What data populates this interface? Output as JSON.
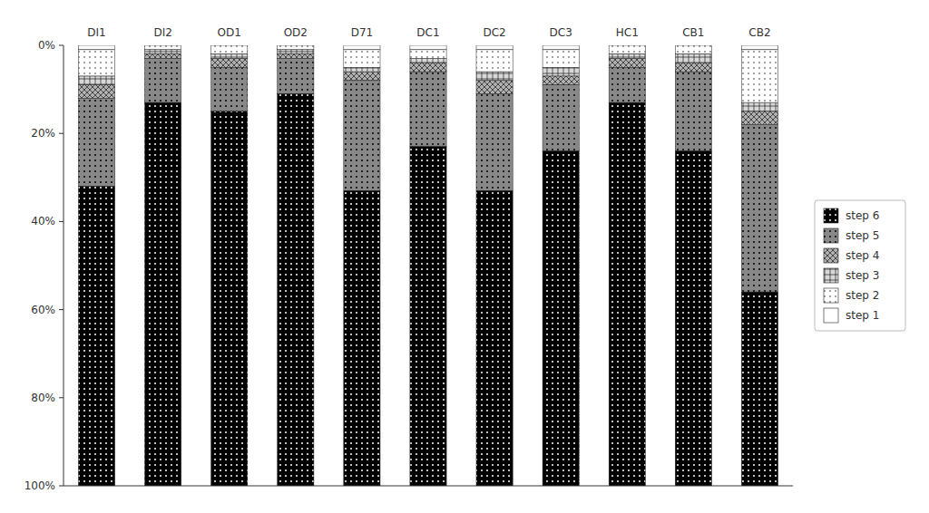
{
  "chart_data": {
    "type": "bar",
    "stacked": true,
    "categories": [
      "DI1",
      "DI2",
      "OD1",
      "OD2",
      "D71",
      "DC1",
      "DC2",
      "DC3",
      "HC1",
      "CB1",
      "CB2"
    ],
    "series": [
      {
        "name": "step 1",
        "color": "#ffffff",
        "values": [
          1,
          0,
          0,
          0,
          1,
          1,
          1,
          1,
          0,
          0,
          1
        ]
      },
      {
        "name": "step 2",
        "color": "#ffffff",
        "values": [
          6,
          1,
          2,
          1,
          4,
          2,
          5,
          4,
          2,
          2,
          12
        ]
      },
      {
        "name": "step 3",
        "color": "#d8d8d8",
        "values": [
          2,
          1,
          1,
          1,
          1,
          1,
          2,
          2,
          1,
          2,
          2
        ]
      },
      {
        "name": "step 4",
        "color": "#b0b0b0",
        "values": [
          3,
          1,
          2,
          1,
          2,
          2,
          3,
          2,
          2,
          2,
          3
        ]
      },
      {
        "name": "step 5",
        "color": "#888888",
        "values": [
          20,
          10,
          10,
          8,
          25,
          17,
          22,
          15,
          8,
          18,
          38
        ]
      },
      {
        "name": "step 6",
        "color": "#000000",
        "values": [
          68,
          87,
          85,
          89,
          67,
          77,
          67,
          76,
          87,
          76,
          44
        ]
      }
    ],
    "ylim": [
      100,
      0
    ],
    "yticks": [
      {
        "value": 0,
        "label": "0%"
      },
      {
        "value": 20,
        "label": "20%"
      },
      {
        "value": 40,
        "label": "40%"
      },
      {
        "value": 60,
        "label": "60%"
      },
      {
        "value": 80,
        "label": "80%"
      },
      {
        "value": 100,
        "label": "100%"
      }
    ],
    "grid": false,
    "legend": "right"
  }
}
